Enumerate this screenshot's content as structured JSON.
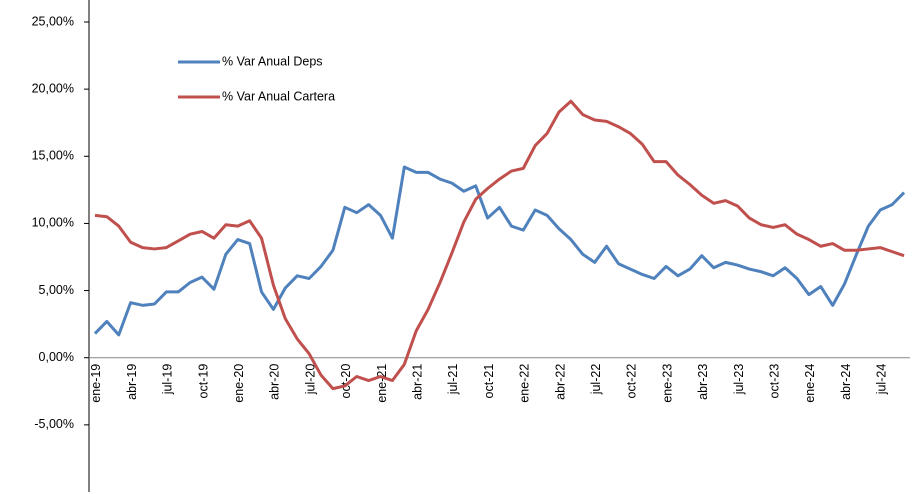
{
  "chart_data": {
    "type": "line",
    "categories": [
      "ene-19",
      null,
      null,
      "abr-19",
      null,
      null,
      "jul-19",
      null,
      null,
      "oct-19",
      null,
      null,
      "ene-20",
      null,
      null,
      "abr-20",
      null,
      null,
      "jul-20",
      null,
      null,
      "oct-20",
      null,
      null,
      "ene-21",
      null,
      null,
      "abr-21",
      null,
      null,
      "jul-21",
      null,
      null,
      "oct-21",
      null,
      null,
      "ene-22",
      null,
      null,
      "abr-22",
      null,
      null,
      "jul-22",
      null,
      null,
      "oct-22",
      null,
      null,
      "ene-23",
      null,
      null,
      "abr-23",
      null,
      null,
      "jul-23",
      null,
      null,
      "oct-23",
      null,
      null,
      "ene-24",
      null,
      null,
      "abr-24",
      null,
      null,
      "jul-24",
      null,
      null
    ],
    "series": [
      {
        "name": "% Var Anual Deps",
        "color": "#4f81bd",
        "values": [
          1.8,
          2.7,
          1.7,
          4.1,
          3.9,
          4.0,
          4.9,
          4.9,
          5.6,
          6.0,
          5.1,
          7.7,
          8.8,
          8.5,
          4.9,
          3.6,
          5.2,
          6.1,
          5.9,
          6.8,
          8.0,
          11.2,
          10.8,
          11.4,
          10.6,
          8.9,
          14.2,
          13.8,
          13.8,
          13.3,
          13.0,
          12.4,
          12.8,
          10.4,
          11.2,
          9.8,
          9.5,
          11.0,
          10.6,
          9.6,
          8.8,
          7.7,
          7.1,
          8.3,
          7.0,
          6.6,
          6.2,
          5.9,
          6.8,
          6.1,
          6.6,
          7.6,
          6.7,
          7.1,
          6.9,
          6.6,
          6.4,
          6.1,
          6.7,
          5.9,
          4.7,
          5.3,
          3.9,
          5.5,
          7.7,
          9.8,
          11.0,
          11.4,
          12.3
        ]
      },
      {
        "name": "% Var Anual Cartera",
        "color": "#c0504d",
        "values": [
          10.6,
          10.5,
          9.8,
          8.6,
          8.2,
          8.1,
          8.2,
          8.7,
          9.2,
          9.4,
          8.9,
          9.9,
          9.8,
          10.2,
          8.9,
          5.4,
          2.9,
          1.4,
          0.3,
          -1.3,
          -2.3,
          -2.1,
          -1.4,
          -1.7,
          -1.4,
          -1.7,
          -0.5,
          2.0,
          3.6,
          5.6,
          7.8,
          10.1,
          11.8,
          12.6,
          13.3,
          13.9,
          14.1,
          15.8,
          16.7,
          18.3,
          19.1,
          18.1,
          17.7,
          17.6,
          17.2,
          16.7,
          15.9,
          14.6,
          14.6,
          13.6,
          12.9,
          12.1,
          11.5,
          11.7,
          11.3,
          10.4,
          9.9,
          9.7,
          9.9,
          9.2,
          8.8,
          8.3,
          8.5,
          8.0,
          8.0,
          8.1,
          8.2,
          7.9,
          7.6
        ]
      }
    ],
    "ylim": [
      -10,
      25
    ],
    "yticks": [
      {
        "value": -5,
        "label": "-5,00%"
      },
      {
        "value": 0,
        "label": "0,00%"
      },
      {
        "value": 5,
        "label": "5,00%"
      },
      {
        "value": 10,
        "label": "10,00%"
      },
      {
        "value": 15,
        "label": "15,00%"
      },
      {
        "value": 20,
        "label": "20,00%"
      },
      {
        "value": 25,
        "label": "25,00%"
      }
    ],
    "grid": false,
    "legend": "upper left"
  }
}
